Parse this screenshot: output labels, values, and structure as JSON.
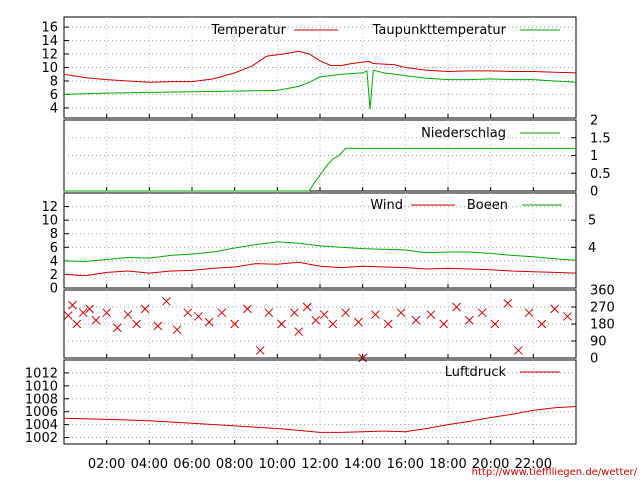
{
  "source_url": "http://www.tiefflliegen.de/wetter/",
  "time_axis": {
    "labels": [
      "02:00",
      "04:00",
      "06:00",
      "08:00",
      "10:00",
      "12:00",
      "14:00",
      "16:00",
      "18:00",
      "20:00",
      "22:00"
    ],
    "hours": [
      2,
      4,
      6,
      8,
      10,
      12,
      14,
      16,
      18,
      20,
      22
    ],
    "range_hours": [
      0,
      24
    ]
  },
  "chart_data": [
    {
      "type": "line",
      "panel": "temperature",
      "ylim": [
        2.5,
        17.5
      ],
      "yticks": [
        4,
        6,
        8,
        10,
        12,
        14,
        16
      ],
      "grid": true,
      "legend": "top-right",
      "series": [
        {
          "name": "Temperatur",
          "color": "#cc0000",
          "points": [
            [
              0,
              9.0
            ],
            [
              1,
              8.5
            ],
            [
              2,
              8.2
            ],
            [
              3,
              8.0
            ],
            [
              4,
              7.8
            ],
            [
              5,
              7.9
            ],
            [
              6,
              7.9
            ],
            [
              7,
              8.3
            ],
            [
              8,
              9.2
            ],
            [
              8.8,
              10.2
            ],
            [
              9.5,
              11.7
            ],
            [
              10.3,
              12.0
            ],
            [
              11,
              12.4
            ],
            [
              11.5,
              12.0
            ],
            [
              12,
              11.0
            ],
            [
              12.5,
              10.3
            ],
            [
              13,
              10.3
            ],
            [
              13.5,
              10.6
            ],
            [
              14,
              10.8
            ],
            [
              14.3,
              10.9
            ],
            [
              14.5,
              10.6
            ],
            [
              15,
              10.5
            ],
            [
              15.5,
              10.4
            ],
            [
              16,
              10.0
            ],
            [
              17,
              9.6
            ],
            [
              18,
              9.4
            ],
            [
              19,
              9.5
            ],
            [
              20,
              9.5
            ],
            [
              21,
              9.4
            ],
            [
              22,
              9.4
            ],
            [
              23,
              9.3
            ],
            [
              24,
              9.2
            ]
          ]
        },
        {
          "name": "Taupunkttemperatur",
          "color": "#00aa00",
          "points": [
            [
              0,
              6.0
            ],
            [
              2,
              6.2
            ],
            [
              4,
              6.3
            ],
            [
              6,
              6.4
            ],
            [
              8,
              6.5
            ],
            [
              10,
              6.6
            ],
            [
              11,
              7.2
            ],
            [
              11.5,
              7.8
            ],
            [
              12,
              8.6
            ],
            [
              13,
              9.0
            ],
            [
              14,
              9.2
            ],
            [
              14.2,
              9.5
            ],
            [
              14.35,
              3.8
            ],
            [
              14.5,
              9.6
            ],
            [
              15,
              9.2
            ],
            [
              16,
              8.8
            ],
            [
              17,
              8.4
            ],
            [
              18,
              8.2
            ],
            [
              19,
              8.2
            ],
            [
              20,
              8.3
            ],
            [
              21,
              8.2
            ],
            [
              22,
              8.2
            ],
            [
              23,
              8.0
            ],
            [
              24,
              7.8
            ]
          ]
        }
      ]
    },
    {
      "type": "line",
      "panel": "precipitation",
      "ylim": [
        0,
        2
      ],
      "yticks": [
        0,
        0.5,
        1,
        1.5,
        2
      ],
      "ytick_labels": [
        "0",
        "0.5",
        "1",
        "1.5",
        "2"
      ],
      "y_axis_side": "right",
      "grid": true,
      "legend": "top-right",
      "series": [
        {
          "name": "Niederschlag",
          "color": "#00aa00",
          "points": [
            [
              0,
              0
            ],
            [
              11.5,
              0
            ],
            [
              11.7,
              0.2
            ],
            [
              12,
              0.45
            ],
            [
              12.3,
              0.7
            ],
            [
              12.6,
              0.9
            ],
            [
              12.9,
              1.0
            ],
            [
              13.2,
              1.2
            ],
            [
              24,
              1.2
            ]
          ]
        }
      ]
    },
    {
      "type": "line",
      "panel": "wind",
      "ylim": [
        0,
        14
      ],
      "yticks": [
        0,
        2,
        4,
        6,
        8,
        10,
        12
      ],
      "right_axis_ticks": [
        4,
        5
      ],
      "right_axis_values": [
        6,
        10
      ],
      "grid": true,
      "legend": "top-right",
      "series": [
        {
          "name": "Wind",
          "color": "#cc0000",
          "points": [
            [
              0,
              2.0
            ],
            [
              1,
              1.8
            ],
            [
              2,
              2.3
            ],
            [
              3,
              2.5
            ],
            [
              4,
              2.2
            ],
            [
              5,
              2.5
            ],
            [
              6,
              2.6
            ],
            [
              7,
              2.9
            ],
            [
              8,
              3.1
            ],
            [
              9,
              3.6
            ],
            [
              10,
              3.5
            ],
            [
              11,
              3.8
            ],
            [
              12,
              3.2
            ],
            [
              13,
              3.0
            ],
            [
              14,
              3.2
            ],
            [
              15,
              3.1
            ],
            [
              16,
              3.0
            ],
            [
              17,
              2.8
            ],
            [
              18,
              2.9
            ],
            [
              19,
              2.8
            ],
            [
              20,
              2.7
            ],
            [
              21,
              2.5
            ],
            [
              22,
              2.4
            ],
            [
              23,
              2.3
            ],
            [
              24,
              2.2
            ]
          ]
        },
        {
          "name": "Boeen",
          "color": "#00aa00",
          "points": [
            [
              0,
              4.0
            ],
            [
              1,
              3.9
            ],
            [
              2,
              4.2
            ],
            [
              3,
              4.5
            ],
            [
              4,
              4.4
            ],
            [
              5,
              4.8
            ],
            [
              6,
              5.0
            ],
            [
              7,
              5.3
            ],
            [
              8,
              5.9
            ],
            [
              9,
              6.4
            ],
            [
              10,
              6.8
            ],
            [
              11,
              6.6
            ],
            [
              12,
              6.2
            ],
            [
              13,
              6.0
            ],
            [
              14,
              5.8
            ],
            [
              15,
              5.7
            ],
            [
              16,
              5.6
            ],
            [
              17,
              5.2
            ],
            [
              18,
              5.3
            ],
            [
              19,
              5.3
            ],
            [
              20,
              5.1
            ],
            [
              21,
              4.8
            ],
            [
              22,
              4.6
            ],
            [
              23,
              4.3
            ],
            [
              24,
              4.1
            ]
          ]
        }
      ]
    },
    {
      "type": "scatter",
      "panel": "wind_direction",
      "ylim": [
        0,
        360
      ],
      "yticks": [
        0,
        90,
        180,
        270,
        360
      ],
      "y_axis_side": "right",
      "grid": true,
      "marker": "x",
      "color": "#cc0000",
      "points": [
        [
          0.2,
          225
        ],
        [
          0.4,
          280
        ],
        [
          0.6,
          180
        ],
        [
          0.9,
          240
        ],
        [
          1.2,
          260
        ],
        [
          1.5,
          200
        ],
        [
          2.0,
          240
        ],
        [
          2.5,
          160
        ],
        [
          3.0,
          230
        ],
        [
          3.4,
          180
        ],
        [
          3.8,
          260
        ],
        [
          4.4,
          170
        ],
        [
          4.8,
          300
        ],
        [
          5.3,
          150
        ],
        [
          5.8,
          240
        ],
        [
          6.3,
          220
        ],
        [
          6.8,
          190
        ],
        [
          7.4,
          240
        ],
        [
          8.0,
          180
        ],
        [
          8.6,
          260
        ],
        [
          9.2,
          40
        ],
        [
          9.6,
          240
        ],
        [
          10.2,
          180
        ],
        [
          10.8,
          240
        ],
        [
          11.0,
          140
        ],
        [
          11.4,
          270
        ],
        [
          11.8,
          200
        ],
        [
          12.2,
          230
        ],
        [
          12.6,
          180
        ],
        [
          13.2,
          240
        ],
        [
          13.8,
          190
        ],
        [
          14.0,
          0
        ],
        [
          14.6,
          230
        ],
        [
          15.2,
          180
        ],
        [
          15.8,
          240
        ],
        [
          16.5,
          200
        ],
        [
          17.2,
          230
        ],
        [
          17.8,
          180
        ],
        [
          18.4,
          270
        ],
        [
          19.0,
          200
        ],
        [
          19.6,
          240
        ],
        [
          20.2,
          180
        ],
        [
          20.8,
          290
        ],
        [
          21.3,
          40
        ],
        [
          21.8,
          240
        ],
        [
          22.4,
          180
        ],
        [
          23.0,
          260
        ],
        [
          23.6,
          220
        ]
      ]
    },
    {
      "type": "line",
      "panel": "pressure",
      "ylim": [
        1001,
        1014
      ],
      "yticks": [
        1002,
        1004,
        1006,
        1008,
        1010,
        1012
      ],
      "grid": true,
      "legend": "top-right",
      "series": [
        {
          "name": "Luftdruck",
          "color": "#cc0000",
          "points": [
            [
              0,
              1005.0
            ],
            [
              2,
              1004.8
            ],
            [
              4,
              1004.6
            ],
            [
              6,
              1004.2
            ],
            [
              8,
              1003.8
            ],
            [
              10,
              1003.4
            ],
            [
              11,
              1003.1
            ],
            [
              12,
              1002.8
            ],
            [
              13,
              1002.8
            ],
            [
              14,
              1002.9
            ],
            [
              15,
              1003.0
            ],
            [
              16,
              1002.9
            ],
            [
              17,
              1003.4
            ],
            [
              18,
              1004.0
            ],
            [
              19,
              1004.5
            ],
            [
              20,
              1005.1
            ],
            [
              21,
              1005.6
            ],
            [
              22,
              1006.2
            ],
            [
              23,
              1006.6
            ],
            [
              24,
              1006.8
            ]
          ]
        }
      ]
    }
  ]
}
